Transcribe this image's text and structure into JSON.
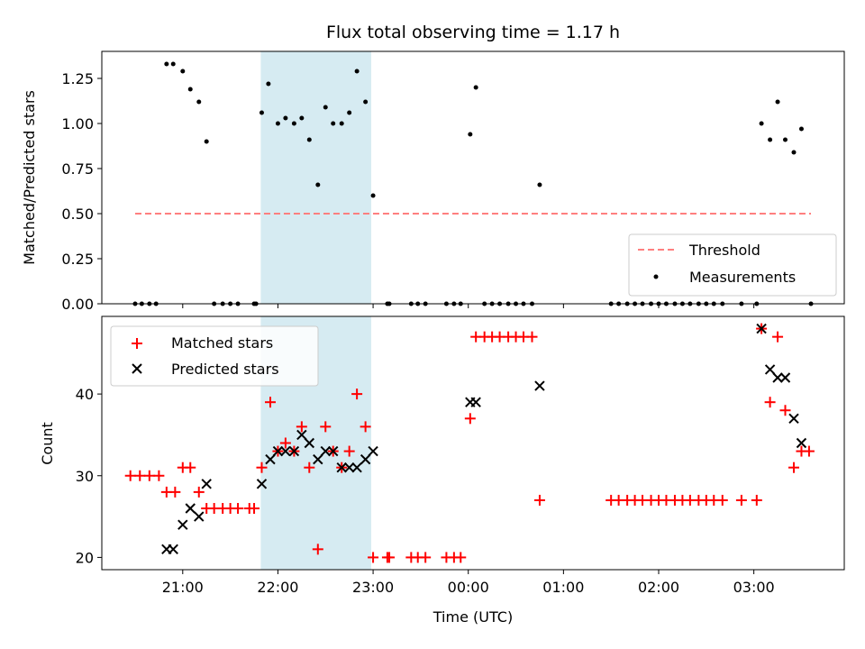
{
  "chart_data": {
    "type": "scatter",
    "title": "Flux total observing time = 1.17 h",
    "xlabel": "Time (UTC)",
    "x_ticks": [
      "21:00",
      "22:00",
      "23:00",
      "00:00",
      "01:00",
      "02:00",
      "03:00"
    ],
    "x_tick_hours": [
      21,
      22,
      23,
      24,
      25,
      26,
      27
    ],
    "xlim": [
      20.15,
      27.95
    ],
    "highlight_span": {
      "start": 21.82,
      "end": 22.98,
      "color": "#add8e6"
    },
    "top": {
      "ylabel": "Matched/Predicted stars",
      "ylim": [
        0,
        1.4
      ],
      "yticks": [
        "0.00",
        "0.25",
        "0.50",
        "0.75",
        "1.00",
        "1.25"
      ],
      "ytick_values": [
        0,
        0.25,
        0.5,
        0.75,
        1.0,
        1.25
      ],
      "threshold": {
        "name": "Threshold",
        "value": 0.5,
        "x_start": 20.5,
        "x_end": 27.6,
        "color": "#ff7f7f"
      },
      "measurements": {
        "name": "Measurements",
        "color": "#000000",
        "points": [
          [
            20.5,
            0
          ],
          [
            20.57,
            0
          ],
          [
            20.65,
            0
          ],
          [
            20.72,
            0
          ],
          [
            20.83,
            1.33
          ],
          [
            20.9,
            1.33
          ],
          [
            21.0,
            1.29
          ],
          [
            21.08,
            1.19
          ],
          [
            21.17,
            1.12
          ],
          [
            21.25,
            0.9
          ],
          [
            21.33,
            0
          ],
          [
            21.42,
            0
          ],
          [
            21.5,
            0
          ],
          [
            21.58,
            0
          ],
          [
            21.75,
            0
          ],
          [
            21.77,
            0
          ],
          [
            21.83,
            1.06
          ],
          [
            21.9,
            1.22
          ],
          [
            22.0,
            1.0
          ],
          [
            22.08,
            1.03
          ],
          [
            22.17,
            1.0
          ],
          [
            22.25,
            1.03
          ],
          [
            22.33,
            0.91
          ],
          [
            22.42,
            0.66
          ],
          [
            22.5,
            1.09
          ],
          [
            22.58,
            1.0
          ],
          [
            22.67,
            1.0
          ],
          [
            22.75,
            1.06
          ],
          [
            22.83,
            1.29
          ],
          [
            22.92,
            1.12
          ],
          [
            23.0,
            0.6
          ],
          [
            23.15,
            0
          ],
          [
            23.17,
            0
          ],
          [
            23.4,
            0
          ],
          [
            23.47,
            0
          ],
          [
            23.55,
            0
          ],
          [
            23.77,
            0
          ],
          [
            23.85,
            0
          ],
          [
            23.92,
            0
          ],
          [
            24.02,
            0.94
          ],
          [
            24.08,
            1.2
          ],
          [
            24.17,
            0
          ],
          [
            24.25,
            0
          ],
          [
            24.33,
            0
          ],
          [
            24.42,
            0
          ],
          [
            24.5,
            0
          ],
          [
            24.58,
            0
          ],
          [
            24.67,
            0
          ],
          [
            24.75,
            0.66
          ],
          [
            25.5,
            0
          ],
          [
            25.58,
            0
          ],
          [
            25.67,
            0
          ],
          [
            25.75,
            0
          ],
          [
            25.83,
            0
          ],
          [
            25.92,
            0
          ],
          [
            26.0,
            0
          ],
          [
            26.08,
            0
          ],
          [
            26.17,
            0
          ],
          [
            26.25,
            0
          ],
          [
            26.33,
            0
          ],
          [
            26.42,
            0
          ],
          [
            26.5,
            0
          ],
          [
            26.58,
            0
          ],
          [
            26.67,
            0
          ],
          [
            26.87,
            0
          ],
          [
            27.03,
            0
          ],
          [
            27.08,
            1.0
          ],
          [
            27.17,
            0.91
          ],
          [
            27.25,
            1.12
          ],
          [
            27.33,
            0.91
          ],
          [
            27.42,
            0.84
          ],
          [
            27.5,
            0.97
          ],
          [
            27.6,
            0
          ]
        ]
      },
      "legend": {
        "position": "lower right"
      }
    },
    "bottom": {
      "ylabel": "Count",
      "ylim": [
        18.5,
        49.5
      ],
      "yticks": [
        "20",
        "30",
        "40"
      ],
      "ytick_values": [
        20,
        30,
        40
      ],
      "legend": {
        "position": "upper left"
      },
      "series": [
        {
          "name": "Matched stars",
          "marker": "plus",
          "color": "#ff0000",
          "points": [
            [
              20.45,
              30
            ],
            [
              20.55,
              30
            ],
            [
              20.65,
              30
            ],
            [
              20.75,
              30
            ],
            [
              20.83,
              28
            ],
            [
              20.92,
              28
            ],
            [
              21.0,
              31
            ],
            [
              21.08,
              31
            ],
            [
              21.17,
              28
            ],
            [
              21.25,
              26
            ],
            [
              21.33,
              26
            ],
            [
              21.42,
              26
            ],
            [
              21.5,
              26
            ],
            [
              21.58,
              26
            ],
            [
              21.7,
              26
            ],
            [
              21.75,
              26
            ],
            [
              21.83,
              31
            ],
            [
              21.92,
              39
            ],
            [
              22.0,
              33
            ],
            [
              22.08,
              34
            ],
            [
              22.17,
              33
            ],
            [
              22.25,
              36
            ],
            [
              22.33,
              31
            ],
            [
              22.42,
              21
            ],
            [
              22.5,
              36
            ],
            [
              22.58,
              33
            ],
            [
              22.67,
              31
            ],
            [
              22.75,
              33
            ],
            [
              22.83,
              40
            ],
            [
              22.92,
              36
            ],
            [
              23.0,
              20
            ],
            [
              23.15,
              20
            ],
            [
              23.17,
              20
            ],
            [
              23.4,
              20
            ],
            [
              23.47,
              20
            ],
            [
              23.55,
              20
            ],
            [
              23.77,
              20
            ],
            [
              23.85,
              20
            ],
            [
              23.92,
              20
            ],
            [
              24.02,
              37
            ],
            [
              24.08,
              47
            ],
            [
              24.17,
              47
            ],
            [
              24.25,
              47
            ],
            [
              24.33,
              47
            ],
            [
              24.42,
              47
            ],
            [
              24.5,
              47
            ],
            [
              24.58,
              47
            ],
            [
              24.67,
              47
            ],
            [
              24.75,
              27
            ],
            [
              25.5,
              27
            ],
            [
              25.58,
              27
            ],
            [
              25.67,
              27
            ],
            [
              25.75,
              27
            ],
            [
              25.83,
              27
            ],
            [
              25.92,
              27
            ],
            [
              26.0,
              27
            ],
            [
              26.08,
              27
            ],
            [
              26.17,
              27
            ],
            [
              26.25,
              27
            ],
            [
              26.33,
              27
            ],
            [
              26.42,
              27
            ],
            [
              26.5,
              27
            ],
            [
              26.58,
              27
            ],
            [
              26.67,
              27
            ],
            [
              26.87,
              27
            ],
            [
              27.03,
              27
            ],
            [
              27.08,
              48
            ],
            [
              27.17,
              39
            ],
            [
              27.25,
              47
            ],
            [
              27.33,
              38
            ],
            [
              27.42,
              31
            ],
            [
              27.5,
              33
            ],
            [
              27.58,
              33
            ]
          ]
        },
        {
          "name": "Predicted stars",
          "marker": "x",
          "color": "#000000",
          "points": [
            [
              20.83,
              21
            ],
            [
              20.9,
              21
            ],
            [
              21.0,
              24
            ],
            [
              21.08,
              26
            ],
            [
              21.17,
              25
            ],
            [
              21.25,
              29
            ],
            [
              21.83,
              29
            ],
            [
              21.92,
              32
            ],
            [
              22.0,
              33
            ],
            [
              22.08,
              33
            ],
            [
              22.17,
              33
            ],
            [
              22.25,
              35
            ],
            [
              22.33,
              34
            ],
            [
              22.42,
              32
            ],
            [
              22.5,
              33
            ],
            [
              22.58,
              33
            ],
            [
              22.67,
              31
            ],
            [
              22.75,
              31
            ],
            [
              22.83,
              31
            ],
            [
              22.92,
              32
            ],
            [
              23.0,
              33
            ],
            [
              24.02,
              39
            ],
            [
              24.08,
              39
            ],
            [
              24.75,
              41
            ],
            [
              27.08,
              48
            ],
            [
              27.17,
              43
            ],
            [
              27.25,
              42
            ],
            [
              27.33,
              42
            ],
            [
              27.42,
              37
            ],
            [
              27.5,
              34
            ]
          ]
        }
      ]
    }
  }
}
